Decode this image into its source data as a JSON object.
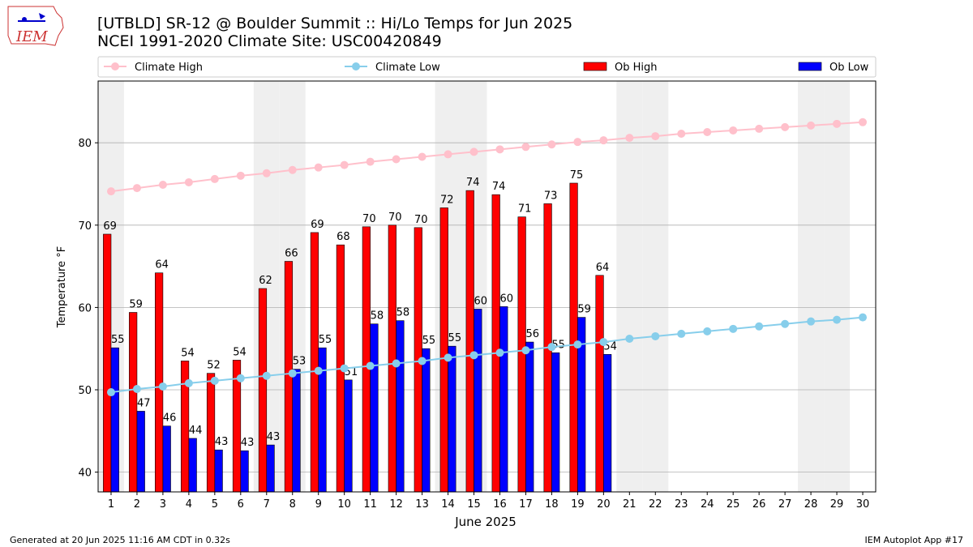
{
  "chart_data": {
    "type": "bar_line",
    "title": "[UTBLD] SR-12 @ Boulder Summit  :: Hi/Lo Temps for Jun 2025",
    "subtitle": "NCEI 1991-2020 Climate Site: USC00420849",
    "xlabel": "June 2025",
    "ylabel": "Temperature °F",
    "x": [
      1,
      2,
      3,
      4,
      5,
      6,
      7,
      8,
      9,
      10,
      11,
      12,
      13,
      14,
      15,
      16,
      17,
      18,
      19,
      20,
      21,
      22,
      23,
      24,
      25,
      26,
      27,
      28,
      29,
      30
    ],
    "xlim": [
      0.5,
      30.5
    ],
    "xticks": [
      1,
      2,
      3,
      4,
      5,
      6,
      7,
      8,
      9,
      10,
      11,
      12,
      13,
      14,
      15,
      16,
      17,
      18,
      19,
      20,
      21,
      22,
      23,
      24,
      25,
      26,
      27,
      28,
      29,
      30
    ],
    "ylim": [
      37.6,
      87.5
    ],
    "yticks": [
      40,
      50,
      60,
      70,
      80
    ],
    "grid": true,
    "shaded_days": [
      1,
      7,
      8,
      14,
      15,
      21,
      22,
      28,
      29
    ],
    "series": [
      {
        "name": "Climate High",
        "color": "#ffc0cb",
        "kind": "line",
        "values": [
          74.1,
          74.5,
          74.9,
          75.2,
          75.6,
          76.0,
          76.3,
          76.7,
          77.0,
          77.3,
          77.7,
          78.0,
          78.3,
          78.6,
          78.9,
          79.2,
          79.5,
          79.8,
          80.1,
          80.3,
          80.6,
          80.8,
          81.1,
          81.3,
          81.5,
          81.7,
          81.9,
          82.1,
          82.3,
          82.5
        ]
      },
      {
        "name": "Climate Low",
        "color": "#87ceeb",
        "kind": "line",
        "values": [
          49.7,
          50.1,
          50.4,
          50.8,
          51.1,
          51.4,
          51.7,
          52.0,
          52.3,
          52.6,
          52.9,
          53.2,
          53.5,
          53.9,
          54.2,
          54.5,
          54.8,
          55.2,
          55.5,
          55.8,
          56.2,
          56.5,
          56.8,
          57.1,
          57.4,
          57.7,
          58.0,
          58.3,
          58.5,
          58.8
        ]
      },
      {
        "name": "Ob High",
        "color": "#ff0000",
        "kind": "bar",
        "offset": -0.15,
        "values": [
          68.9,
          59.4,
          64.2,
          53.5,
          52.0,
          53.6,
          62.3,
          65.6,
          69.1,
          67.6,
          69.8,
          70.0,
          69.7,
          72.1,
          74.2,
          73.7,
          71.0,
          72.6,
          75.1,
          63.9,
          null,
          null,
          null,
          null,
          null,
          null,
          null,
          null,
          null,
          null
        ],
        "value_labels": [
          "69",
          "59",
          "64",
          "54",
          "52",
          "54",
          "62",
          "66",
          "69",
          "68",
          "70",
          "70",
          "70",
          "72",
          "74",
          "74",
          "71",
          "73",
          "75",
          "64",
          null,
          null,
          null,
          null,
          null,
          null,
          null,
          null,
          null,
          null
        ]
      },
      {
        "name": "Ob Low",
        "color": "#0000ff",
        "kind": "bar",
        "offset": 0.15,
        "values": [
          55.1,
          47.4,
          45.6,
          44.1,
          42.7,
          42.6,
          43.3,
          52.5,
          55.1,
          51.2,
          58.0,
          58.4,
          55.0,
          55.3,
          59.8,
          60.1,
          55.8,
          54.5,
          58.8,
          54.3,
          null,
          null,
          null,
          null,
          null,
          null,
          null,
          null,
          null,
          null
        ],
        "value_labels": [
          "55",
          "47",
          "46",
          "44",
          "43",
          "43",
          "43",
          "53",
          "55",
          "51",
          "58",
          "58",
          "55",
          "55",
          "60",
          "60",
          "56",
          "55",
          "59",
          "54",
          null,
          null,
          null,
          null,
          null,
          null,
          null,
          null,
          null,
          null
        ]
      }
    ]
  },
  "logo": "IEM",
  "footer_left": "Generated at 20 Jun 2025 11:16 AM CDT in 0.32s",
  "footer_right": "IEM Autoplot App #17"
}
